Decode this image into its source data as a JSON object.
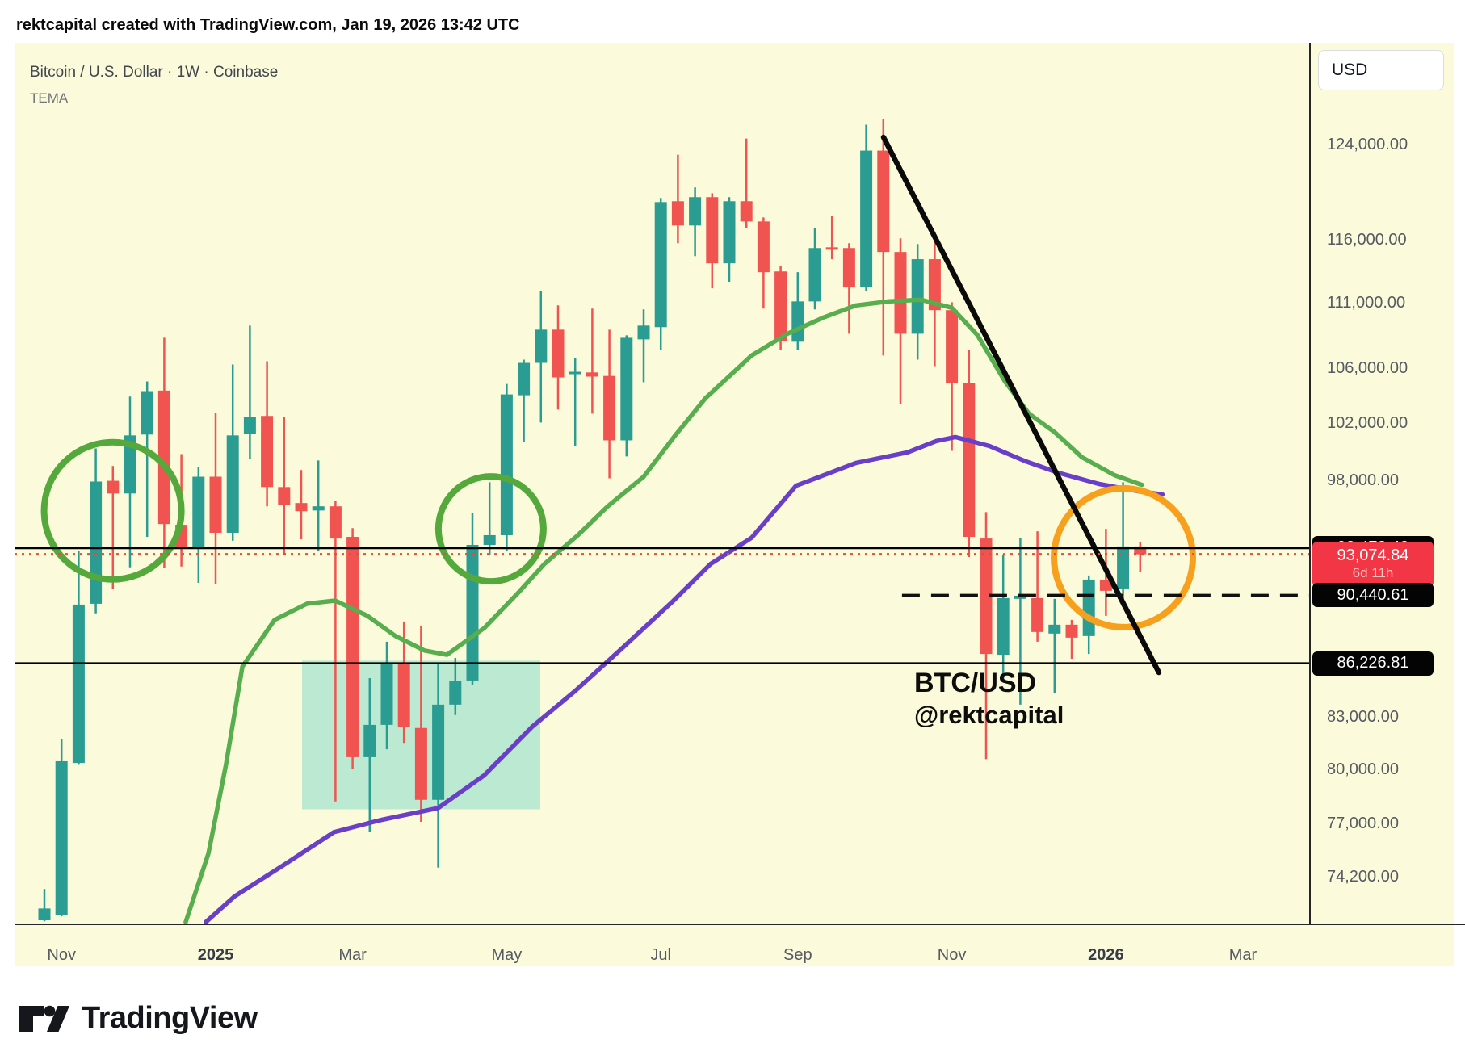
{
  "header": {
    "attribution": "rektcapital created with TradingView.com, Jan 19, 2026 13:42 UTC"
  },
  "chart_header": {
    "symbol_title": "Bitcoin / U.S. Dollar · 1W · Coinbase",
    "indicator_label": "TEMA"
  },
  "watermark": {
    "line1": "BTC/USD",
    "line2": "@rektcapital"
  },
  "price_scale": {
    "currency_button": "USD",
    "ticks": [
      {
        "label": "124,000.00",
        "price": 124000
      },
      {
        "label": "116,000.00",
        "price": 116000
      },
      {
        "label": "111,000.00",
        "price": 111000
      },
      {
        "label": "106,000.00",
        "price": 106000
      },
      {
        "label": "102,000.00",
        "price": 102000
      },
      {
        "label": "98,000.00",
        "price": 98000
      },
      {
        "label": "83,000.00",
        "price": 83000
      },
      {
        "label": "80,000.00",
        "price": 80000
      },
      {
        "label": "77,000.00",
        "price": 77000
      },
      {
        "label": "74,200.00",
        "price": 74200
      }
    ],
    "tags": [
      {
        "label": "93,478.42",
        "price": 93478.42,
        "type": "black"
      },
      {
        "label": "93,074.84",
        "sub": "6d 11h",
        "price": 93074.84,
        "type": "red"
      },
      {
        "label": "90,440.61",
        "price": 90440.61,
        "type": "black"
      },
      {
        "label": "86,226.81",
        "price": 86226.81,
        "type": "black"
      }
    ]
  },
  "time_scale": {
    "labels": [
      {
        "label": "Nov",
        "week": 1,
        "bold": false
      },
      {
        "label": "2025",
        "week": 10,
        "bold": true
      },
      {
        "label": "Mar",
        "week": 18,
        "bold": false
      },
      {
        "label": "May",
        "week": 27,
        "bold": false
      },
      {
        "label": "Jul",
        "week": 36,
        "bold": false
      },
      {
        "label": "Sep",
        "week": 44,
        "bold": false
      },
      {
        "label": "Nov",
        "week": 53,
        "bold": false
      },
      {
        "label": "2026",
        "week": 62,
        "bold": true
      },
      {
        "label": "Mar",
        "week": 70,
        "bold": false
      }
    ]
  },
  "colors": {
    "chart_bg": "#fbfbdb",
    "candle_up": "#2b9c92",
    "candle_down": "#f05350",
    "tema_line": "#58ad4e",
    "ma_line": "#6a3fc7",
    "circle_green": "#55a93c",
    "circle_orange": "#f7a01d",
    "box_fill": "#7dd8c8",
    "trendline": "#0a0a0a",
    "h_line": "#000000",
    "close_line": "#d94f46",
    "dashed_line": "#111111"
  },
  "logo": {
    "text": "TradingView"
  },
  "chart_data": {
    "type": "candlestick",
    "interval": "1W",
    "title": "Bitcoin / U.S. Dollar 1W Coinbase",
    "y_axis": {
      "type": "log",
      "price_at_ref": 124000,
      "visible_top_price": 126500,
      "visible_bottom_price": 71800
    },
    "candles_ohlc": [
      [
        72000,
        73600,
        71950,
        72600
      ],
      [
        72250,
        81750,
        72200,
        80500
      ],
      [
        80400,
        93300,
        80300,
        89850
      ],
      [
        89900,
        100250,
        89300,
        97950
      ],
      [
        98000,
        99020,
        90870,
        97130
      ],
      [
        97130,
        103960,
        92230,
        101170
      ],
      [
        101230,
        105070,
        94220,
        104360
      ],
      [
        104400,
        108340,
        92180,
        95070
      ],
      [
        95020,
        99850,
        92280,
        93500
      ],
      [
        93530,
        98960,
        91230,
        98280
      ],
      [
        98280,
        102780,
        91130,
        94490
      ],
      [
        94490,
        106330,
        93960,
        101170
      ],
      [
        101280,
        109270,
        99520,
        102500
      ],
      [
        102560,
        106570,
        96260,
        97570
      ],
      [
        97570,
        102500,
        93060,
        96370
      ],
      [
        96480,
        98740,
        94060,
        95930
      ],
      [
        95980,
        99410,
        93270,
        96260
      ],
      [
        96260,
        96640,
        78260,
        94110
      ],
      [
        94220,
        94800,
        80050,
        80730
      ],
      [
        80730,
        85330,
        76590,
        82580
      ],
      [
        82580,
        87540,
        81180,
        86160
      ],
      [
        86160,
        88790,
        81540,
        82440
      ],
      [
        82400,
        88540,
        77150,
        78350
      ],
      [
        78350,
        86160,
        74710,
        83760
      ],
      [
        83760,
        86550,
        83150,
        85140
      ],
      [
        85190,
        95800,
        84950,
        93690
      ],
      [
        93690,
        97900,
        93010,
        94330
      ],
      [
        94330,
        104890,
        93270,
        104120
      ],
      [
        104060,
        106690,
        100710,
        106450
      ],
      [
        106450,
        111960,
        102090,
        108960
      ],
      [
        108960,
        110830,
        103020,
        105370
      ],
      [
        105610,
        106810,
        100420,
        105790
      ],
      [
        105740,
        110580,
        102730,
        105430
      ],
      [
        105480,
        108960,
        98170,
        100820
      ],
      [
        100820,
        108530,
        99690,
        108340
      ],
      [
        108220,
        110520,
        105010,
        109270
      ],
      [
        109150,
        119500,
        107420,
        119160
      ],
      [
        119230,
        123190,
        115770,
        117220
      ],
      [
        117220,
        120390,
        114730,
        119570
      ],
      [
        119570,
        119900,
        112170,
        114150
      ],
      [
        114150,
        119570,
        112680,
        119230
      ],
      [
        119230,
        124590,
        117020,
        117550
      ],
      [
        117550,
        117880,
        110580,
        113440
      ],
      [
        113500,
        113900,
        107420,
        108100
      ],
      [
        108040,
        113440,
        107420,
        111140
      ],
      [
        111140,
        117020,
        110520,
        115380
      ],
      [
        115440,
        118020,
        114480,
        115250
      ],
      [
        115380,
        115770,
        108650,
        112230
      ],
      [
        112230,
        125800,
        111960,
        123540
      ],
      [
        123540,
        126300,
        107000,
        115060
      ],
      [
        115060,
        116170,
        103430,
        108650
      ],
      [
        108650,
        115710,
        106690,
        114480
      ],
      [
        114480,
        116360,
        106210,
        110460
      ],
      [
        110460,
        111080,
        100080,
        104950
      ],
      [
        104950,
        107420,
        92900,
        94220
      ],
      [
        94110,
        95870,
        80620,
        86790
      ],
      [
        86740,
        93060,
        85190,
        90260
      ],
      [
        90210,
        94160,
        83760,
        90410
      ],
      [
        90260,
        94590,
        87540,
        88140
      ],
      [
        88040,
        90210,
        84430,
        88590
      ],
      [
        88590,
        88890,
        86500,
        87790
      ],
      [
        87890,
        91700,
        86790,
        91440
      ],
      [
        91390,
        94750,
        89140,
        90720
      ],
      [
        90870,
        97900,
        90160,
        93590
      ],
      [
        93590,
        93850,
        91910,
        93074.84
      ]
    ],
    "overlays": {
      "support_box": {
        "week_from": 15.05,
        "week_to": 28.96,
        "price_top": 86390,
        "price_bottom": 77830
      },
      "h_lines": [
        {
          "price": 93478.42
        },
        {
          "price": 86226.81
        }
      ],
      "close_line": {
        "price": 93074.84
      },
      "dashed_line": {
        "price": 90440.61,
        "from_week": 50.09
      },
      "trendline": {
        "week_from": 49.01,
        "price_from": 124700,
        "week_to": 65.09,
        "price_to": 85670
      },
      "circles": [
        {
          "week": 3.99,
          "price": 95960,
          "radius_px": 85,
          "color": "green"
        },
        {
          "week": 26.08,
          "price": 94750,
          "radius_px": 65,
          "color": "green"
        },
        {
          "week": 63.02,
          "price": 92850,
          "radius_px": 86,
          "color": "orange"
        }
      ],
      "tema_points": [
        [
          8.25,
          71910
        ],
        [
          9.58,
          75460
        ],
        [
          10.6,
          80280
        ],
        [
          11.56,
          86020
        ],
        [
          13.44,
          88890
        ],
        [
          15.33,
          89900
        ],
        [
          16.98,
          90100
        ],
        [
          18.87,
          89140
        ],
        [
          20.5,
          87890
        ],
        [
          22.2,
          87000
        ],
        [
          23.5,
          86740
        ],
        [
          25.7,
          88390
        ],
        [
          27.6,
          90510
        ],
        [
          29.2,
          92440
        ],
        [
          31.1,
          94270
        ],
        [
          32.9,
          96260
        ],
        [
          35.0,
          98280
        ],
        [
          36.8,
          101110
        ],
        [
          38.6,
          103830
        ],
        [
          41.3,
          107000
        ],
        [
          43.4,
          108650
        ],
        [
          45.5,
          109890
        ],
        [
          47.4,
          110830
        ],
        [
          49.3,
          111140
        ],
        [
          51.2,
          111270
        ],
        [
          53.0,
          110640
        ],
        [
          54.5,
          108530
        ],
        [
          56.1,
          105070
        ],
        [
          57.5,
          102730
        ],
        [
          59.0,
          101400
        ],
        [
          60.6,
          99630
        ],
        [
          62.5,
          98390
        ],
        [
          64.1,
          97720
        ]
      ],
      "ma_points": [
        [
          9.43,
          71910
        ],
        [
          11.1,
          73220
        ],
        [
          13.9,
          74800
        ],
        [
          16.9,
          76590
        ],
        [
          19.6,
          77240
        ],
        [
          23.0,
          77900
        ],
        [
          25.7,
          79720
        ],
        [
          28.5,
          82480
        ],
        [
          31.0,
          84570
        ],
        [
          33.7,
          87100
        ],
        [
          36.7,
          90050
        ],
        [
          38.9,
          92440
        ],
        [
          41.3,
          94160
        ],
        [
          43.9,
          97660
        ],
        [
          47.4,
          99240
        ],
        [
          50.4,
          99970
        ],
        [
          52.1,
          100770
        ],
        [
          53.2,
          101050
        ],
        [
          55.2,
          100420
        ],
        [
          57.3,
          99350
        ],
        [
          59.2,
          98560
        ],
        [
          61.6,
          97780
        ],
        [
          64.1,
          97240
        ],
        [
          65.3,
          97070
        ]
      ]
    }
  }
}
